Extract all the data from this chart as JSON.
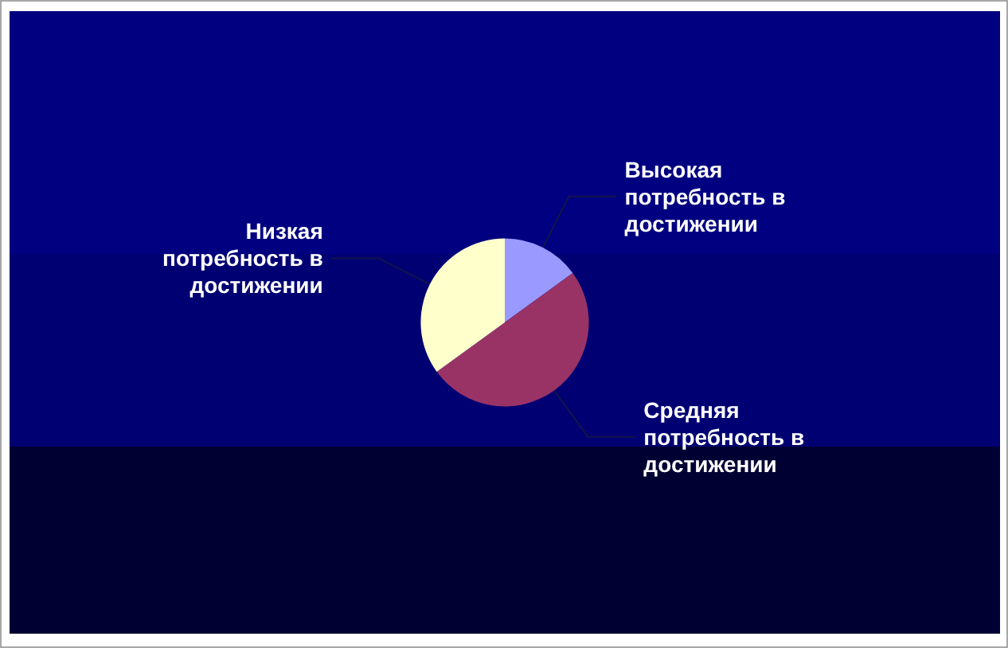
{
  "chart_data": {
    "type": "pie",
    "categories": [
      "Высокая потребность в достижении",
      "Средняя потребность в достижении",
      "Низкая потребность в достижении"
    ],
    "values": [
      15,
      50,
      35
    ],
    "colors": [
      "#9999ff",
      "#993366",
      "#ffffcc"
    ]
  }
}
